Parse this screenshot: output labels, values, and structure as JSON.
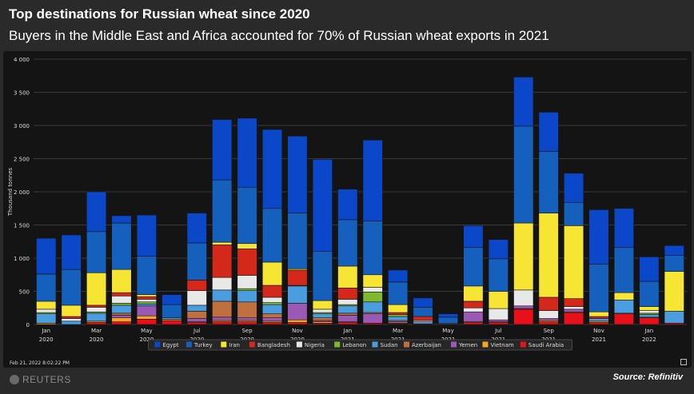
{
  "header": {
    "title": "Top destinations for Russian wheat since 2020",
    "subtitle": "Buyers in the Middle East and Africa accounted for 70% of Russian wheat exports in 2021"
  },
  "footer": {
    "timestamp": "Feb 21, 2022 8:02:22 PM",
    "brand": "REUTERS",
    "source": "Source: Refinitiv"
  },
  "chart_data": {
    "type": "bar",
    "stacked": true,
    "ylabel": "Thousand tonnes",
    "ylim": [
      0,
      4000
    ],
    "yticks": [
      0,
      500,
      1000,
      1500,
      2000,
      2500,
      3000,
      3500,
      4000
    ],
    "ytick_labels": [
      "0",
      "500",
      "1 000",
      "1 500",
      "2 000",
      "2 500",
      "3 000",
      "3 500",
      "4 000"
    ],
    "grid": true,
    "legend_position": "bottom",
    "categories": [
      "Jan 2020",
      "Feb 2020",
      "Mar 2020",
      "Apr 2020",
      "May 2020",
      "Jun 2020",
      "Jul 2020",
      "Aug 2020",
      "Sep 2020",
      "Oct 2020",
      "Nov 2020",
      "Dec 2020",
      "Jan 2021",
      "Feb 2021",
      "Mar 2021",
      "Apr 2021",
      "May 2021",
      "Jun 2021",
      "Jul 2021",
      "Aug 2021",
      "Sep 2021",
      "Oct 2021",
      "Nov 2021",
      "Dec 2021",
      "Jan 2022",
      "Feb 2022"
    ],
    "x_tick_labels": [
      {
        "index": 0,
        "month": "Jan",
        "year": "2020"
      },
      {
        "index": 2,
        "month": "Mar",
        "year": "2020"
      },
      {
        "index": 4,
        "month": "May",
        "year": "2020"
      },
      {
        "index": 6,
        "month": "Jul",
        "year": "2020"
      },
      {
        "index": 8,
        "month": "Sep",
        "year": "2020"
      },
      {
        "index": 10,
        "month": "Nov",
        "year": "2020"
      },
      {
        "index": 12,
        "month": "Jan",
        "year": "2021"
      },
      {
        "index": 14,
        "month": "Mar",
        "year": "2021"
      },
      {
        "index": 16,
        "month": "May",
        "year": "2021"
      },
      {
        "index": 18,
        "month": "Jul",
        "year": "2021"
      },
      {
        "index": 20,
        "month": "Sep",
        "year": "2021"
      },
      {
        "index": 22,
        "month": "Nov",
        "year": "2021"
      },
      {
        "index": 24,
        "month": "Jan",
        "year": "2022"
      }
    ],
    "series": [
      {
        "name": "Saudi Arabia",
        "color": "#e8111a",
        "values": [
          0,
          0,
          30,
          40,
          80,
          60,
          30,
          40,
          40,
          30,
          30,
          20,
          30,
          20,
          10,
          10,
          0,
          30,
          30,
          230,
          40,
          180,
          30,
          160,
          100,
          20
        ]
      },
      {
        "name": "Vietnam",
        "color": "#f5a623",
        "values": [
          20,
          0,
          20,
          60,
          50,
          20,
          10,
          20,
          20,
          20,
          40,
          20,
          10,
          0,
          10,
          0,
          0,
          10,
          10,
          10,
          20,
          10,
          20,
          10,
          10,
          0
        ]
      },
      {
        "name": "Yemen",
        "color": "#9b59b6",
        "values": [
          0,
          0,
          0,
          40,
          150,
          0,
          50,
          50,
          40,
          50,
          250,
          20,
          100,
          140,
          20,
          0,
          0,
          150,
          30,
          40,
          30,
          40,
          0,
          0,
          0,
          0
        ]
      },
      {
        "name": "Azerbaijan",
        "color": "#c0703e",
        "values": [
          0,
          0,
          0,
          30,
          0,
          0,
          110,
          240,
          240,
          60,
          0,
          40,
          30,
          20,
          20,
          0,
          0,
          0,
          0,
          0,
          0,
          0,
          0,
          0,
          0,
          0
        ]
      },
      {
        "name": "Sudan",
        "color": "#4a9ee0",
        "values": [
          140,
          50,
          120,
          120,
          30,
          20,
          90,
          170,
          170,
          140,
          260,
          60,
          110,
          160,
          60,
          30,
          10,
          0,
          0,
          0,
          0,
          0,
          40,
          200,
          40,
          180
        ]
      },
      {
        "name": "Lebanon",
        "color": "#7dba2f",
        "values": [
          20,
          0,
          20,
          30,
          30,
          0,
          0,
          0,
          30,
          30,
          10,
          20,
          20,
          150,
          30,
          0,
          0,
          0,
          0,
          0,
          0,
          0,
          0,
          0,
          20,
          0
        ]
      },
      {
        "name": "Nigeria",
        "color": "#e8e8e8",
        "values": [
          50,
          40,
          70,
          110,
          40,
          0,
          220,
          190,
          200,
          80,
          0,
          50,
          80,
          70,
          0,
          20,
          10,
          60,
          170,
          240,
          120,
          40,
          0,
          0,
          40,
          0
        ]
      },
      {
        "name": "Bangladesh",
        "color": "#d4281a",
        "values": [
          0,
          30,
          30,
          50,
          40,
          0,
          160,
          490,
          400,
          180,
          230,
          0,
          170,
          0,
          30,
          60,
          0,
          100,
          0,
          0,
          200,
          120,
          30,
          0,
          0,
          0
        ]
      },
      {
        "name": "Iran",
        "color": "#f6e533",
        "values": [
          120,
          170,
          490,
          350,
          30,
          0,
          0,
          40,
          80,
          350,
          20,
          130,
          330,
          190,
          120,
          0,
          0,
          230,
          260,
          1010,
          1270,
          1100,
          70,
          110,
          60,
          600
        ]
      },
      {
        "name": "Turkey",
        "color": "#1560bd",
        "values": [
          410,
          540,
          620,
          700,
          580,
          200,
          560,
          940,
          850,
          810,
          840,
          740,
          700,
          810,
          340,
          140,
          90,
          580,
          490,
          1460,
          930,
          350,
          720,
          680,
          380,
          240
        ]
      },
      {
        "name": "Egypt",
        "color": "#0a47c9",
        "values": [
          540,
          520,
          600,
          110,
          620,
          150,
          450,
          910,
          1040,
          1190,
          1160,
          1390,
          460,
          1220,
          180,
          140,
          50,
          330,
          290,
          740,
          590,
          440,
          820,
          590,
          370,
          150
        ]
      }
    ],
    "legend_order": [
      "Egypt",
      "Turkey",
      "Iran",
      "Bangladesh",
      "Nigeria",
      "Lebanon",
      "Sudan",
      "Azerbaijan",
      "Yemen",
      "Vietnam",
      "Saudi Arabia"
    ]
  }
}
